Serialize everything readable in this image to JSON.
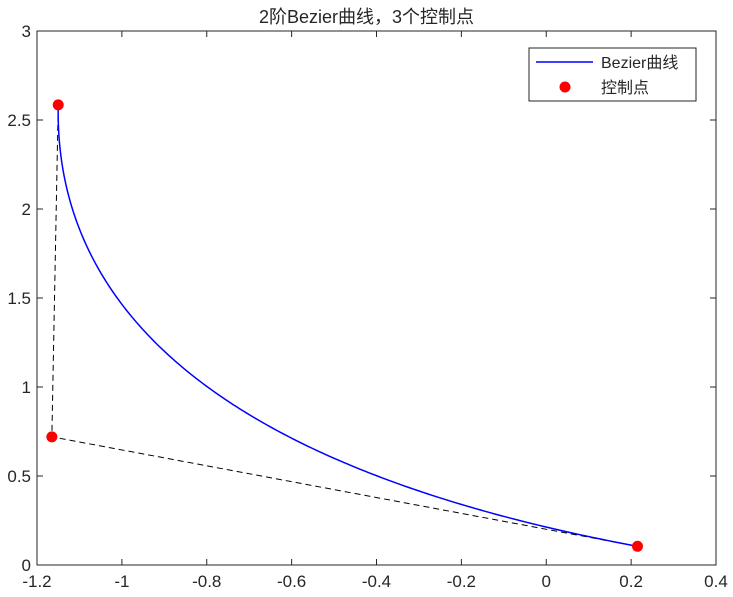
{
  "chart_data": {
    "type": "line",
    "title": "2阶Bezier曲线，3个控制点",
    "xlabel": "",
    "ylabel": "",
    "xlim": [
      -1.2,
      0.4
    ],
    "ylim": [
      0,
      3
    ],
    "xticks": [
      -1.2,
      -1,
      -0.8,
      -0.6,
      -0.4,
      -0.2,
      0,
      0.2,
      0.4
    ],
    "xtick_labels": [
      "-1.2",
      "-1",
      "-0.8",
      "-0.6",
      "-0.4",
      "-0.2",
      "0",
      "0.2",
      "0.4"
    ],
    "yticks": [
      0,
      0.5,
      1,
      1.5,
      2,
      2.5,
      3
    ],
    "ytick_labels": [
      "0",
      "0.5",
      "1",
      "1.5",
      "2",
      "2.5",
      "3"
    ],
    "grid": false,
    "legend_position": "top-right",
    "series": [
      {
        "name": "Bezier曲线",
        "kind": "quadratic-bezier-curve",
        "color": "#0000ff"
      },
      {
        "name": "控制点",
        "kind": "markers",
        "color": "#ff0000",
        "x": [
          -1.15,
          -1.165,
          0.215
        ],
        "y": [
          2.585,
          0.72,
          0.105
        ]
      },
      {
        "kind": "control-polygon",
        "color": "#000000",
        "linestyle": "dashed",
        "x": [
          -1.15,
          -1.165,
          0.215
        ],
        "y": [
          2.585,
          0.72,
          0.105
        ]
      }
    ]
  }
}
